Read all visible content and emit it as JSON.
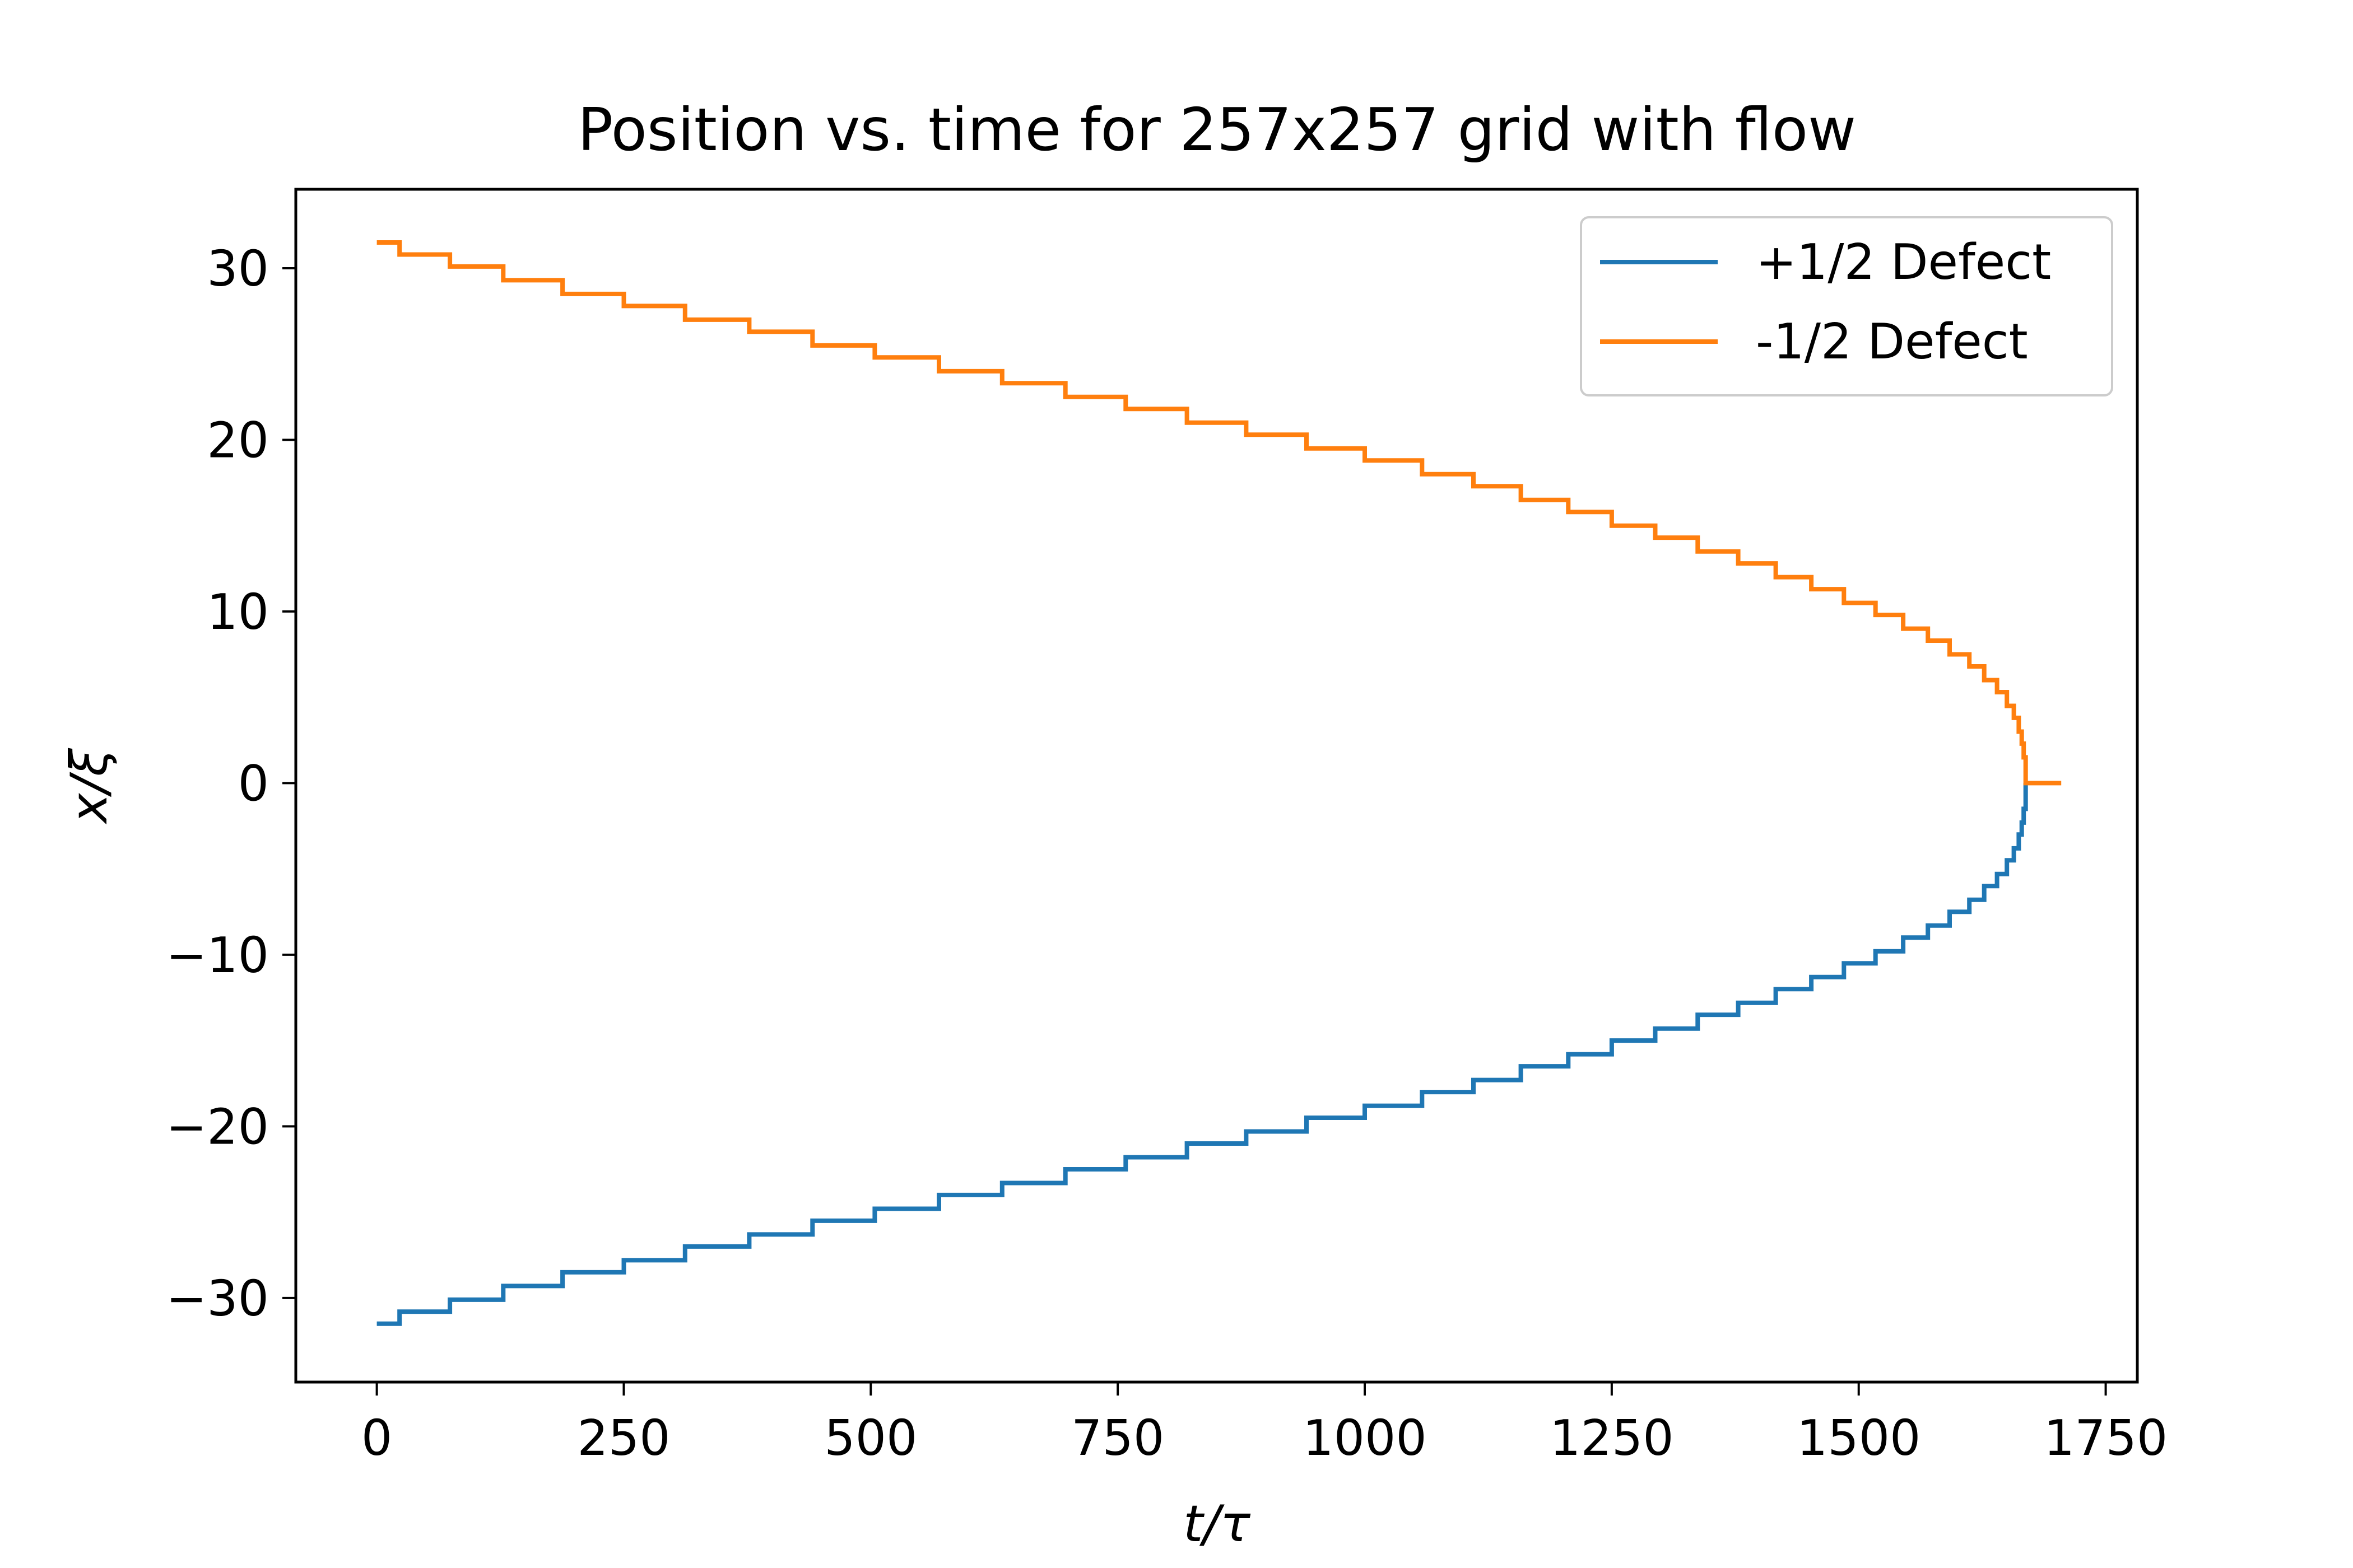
{
  "chart_data": {
    "type": "line",
    "title": "Position vs. time for 257x257 grid with flow",
    "xlabel": "t/τ",
    "ylabel": "x/ξ",
    "xlim": [
      -82,
      1782
    ],
    "ylim": [
      -34.9,
      34.6
    ],
    "xticks": [
      0,
      250,
      500,
      750,
      1000,
      1250,
      1500,
      1750
    ],
    "xtick_labels": [
      "0",
      "250",
      "500",
      "750",
      "1000",
      "1250",
      "1500",
      "1750"
    ],
    "yticks": [
      -30,
      -20,
      -10,
      0,
      10,
      20,
      30
    ],
    "ytick_labels": [
      "−30",
      "−20",
      "−10",
      "0",
      "10",
      "20",
      "30"
    ],
    "grid": false,
    "legend_position": "top-right",
    "series": [
      {
        "name": "+1/2 Defect",
        "color": "#1f77b4",
        "steps": {
          "t": [
            0,
            23,
            74,
            128,
            188,
            250,
            312,
            377,
            441,
            504,
            569,
            633,
            697,
            758,
            820,
            880,
            941,
            1000,
            1058,
            1110,
            1158,
            1206,
            1250,
            1294,
            1337,
            1378,
            1416,
            1452,
            1485,
            1517,
            1545,
            1570,
            1592,
            1612,
            1627,
            1640,
            1650,
            1657,
            1662,
            1665,
            1667,
            1669
          ],
          "x": [
            -31.5,
            -30.8,
            -30.1,
            -29.3,
            -28.5,
            -27.8,
            -27.0,
            -26.3,
            -25.5,
            -24.8,
            -24.0,
            -23.3,
            -22.5,
            -21.8,
            -21.0,
            -20.3,
            -19.5,
            -18.8,
            -18.0,
            -17.3,
            -16.5,
            -15.8,
            -15.0,
            -14.3,
            -13.5,
            -12.8,
            -12.0,
            -11.3,
            -10.5,
            -9.8,
            -9.0,
            -8.3,
            -7.5,
            -6.8,
            -6.0,
            -5.3,
            -4.5,
            -3.8,
            -3.0,
            -2.3,
            -1.5,
            0.0
          ]
        }
      },
      {
        "name": "-1/2 Defect",
        "color": "#ff7f0e",
        "steps": {
          "t": [
            0,
            23,
            74,
            128,
            188,
            250,
            312,
            377,
            441,
            504,
            569,
            633,
            697,
            758,
            820,
            880,
            941,
            1000,
            1058,
            1110,
            1158,
            1206,
            1250,
            1294,
            1337,
            1378,
            1416,
            1452,
            1485,
            1517,
            1545,
            1570,
            1592,
            1612,
            1627,
            1640,
            1650,
            1657,
            1662,
            1665,
            1667,
            1669,
            1705
          ],
          "x": [
            31.5,
            30.8,
            30.1,
            29.3,
            28.5,
            27.8,
            27.0,
            26.3,
            25.5,
            24.8,
            24.0,
            23.3,
            22.5,
            21.8,
            21.0,
            20.3,
            19.5,
            18.8,
            18.0,
            17.3,
            16.5,
            15.8,
            15.0,
            14.3,
            13.5,
            12.8,
            12.0,
            11.3,
            10.5,
            9.8,
            9.0,
            8.3,
            7.5,
            6.8,
            6.0,
            5.3,
            4.5,
            3.8,
            3.0,
            2.3,
            1.5,
            0.0,
            0.0
          ]
        }
      }
    ]
  }
}
